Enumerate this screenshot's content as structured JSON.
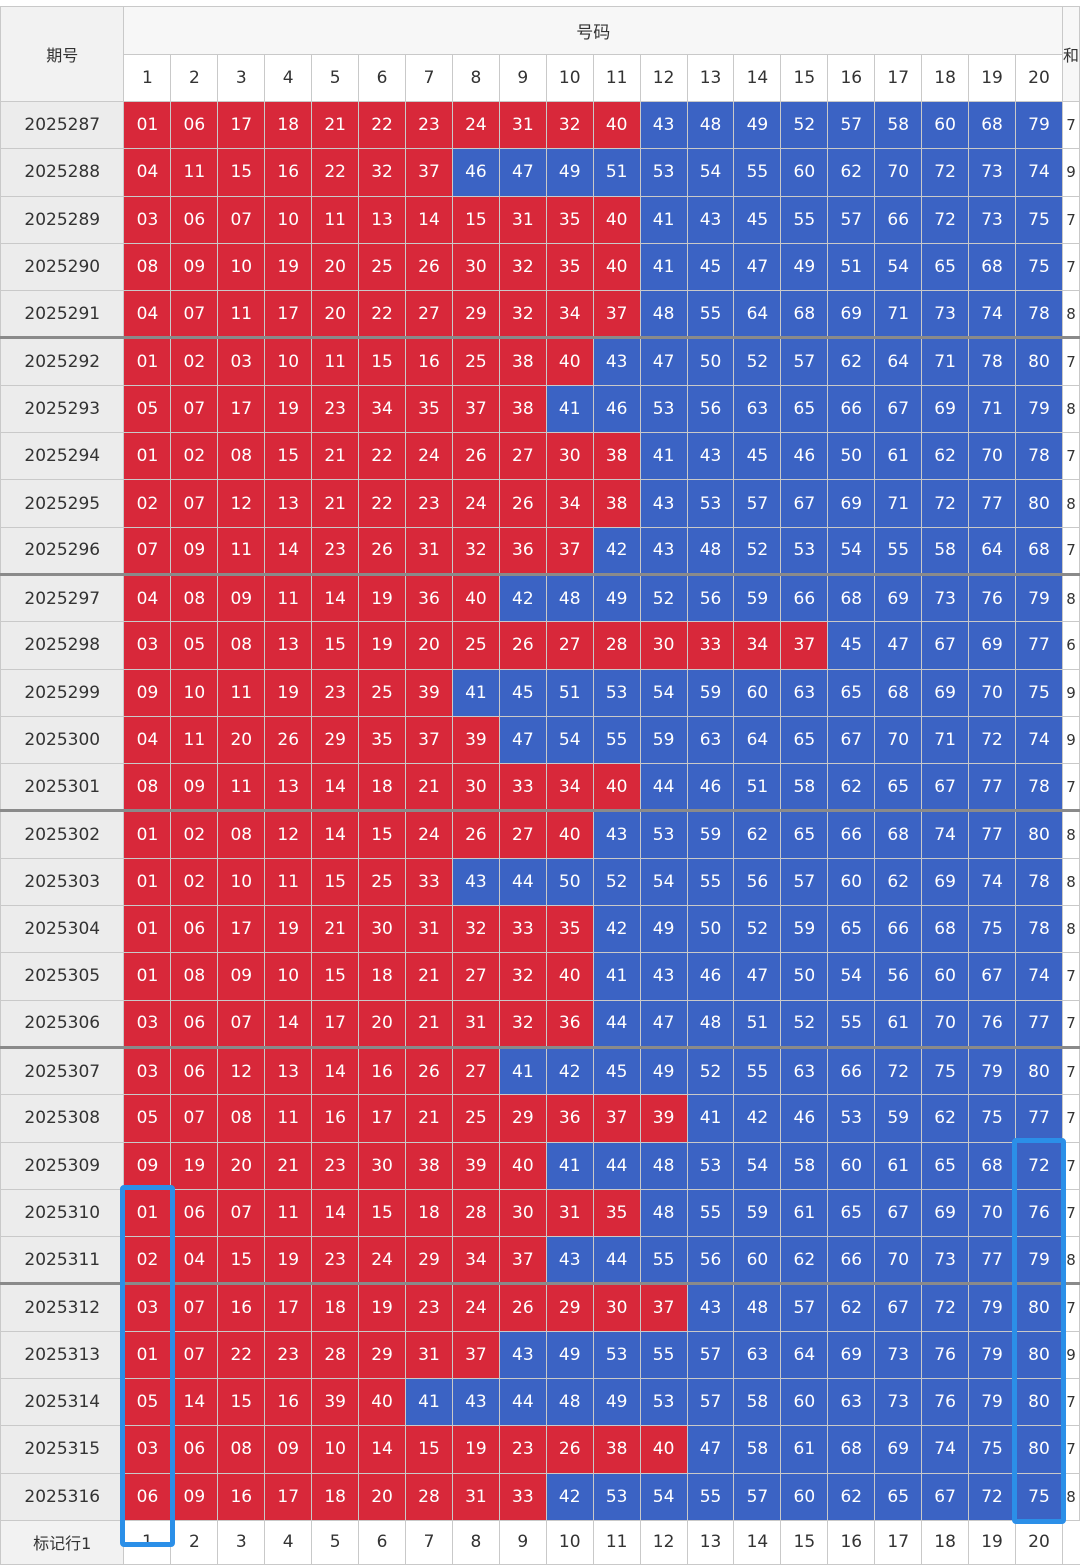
{
  "header": {
    "period_label": "期号",
    "group_label": "号码",
    "extra_label": "和",
    "columns": [
      "1",
      "2",
      "3",
      "4",
      "5",
      "6",
      "7",
      "8",
      "9",
      "10",
      "11",
      "12",
      "13",
      "14",
      "15",
      "16",
      "17",
      "18",
      "19",
      "20"
    ]
  },
  "rows": [
    {
      "period": "2025287",
      "numbers": [
        "01",
        "06",
        "17",
        "18",
        "21",
        "22",
        "23",
        "24",
        "31",
        "32",
        "40",
        "43",
        "48",
        "49",
        "52",
        "57",
        "58",
        "60",
        "68",
        "79"
      ],
      "extra": "7"
    },
    {
      "period": "2025288",
      "numbers": [
        "04",
        "11",
        "15",
        "16",
        "22",
        "32",
        "37",
        "46",
        "47",
        "49",
        "51",
        "53",
        "54",
        "55",
        "60",
        "62",
        "70",
        "72",
        "73",
        "74"
      ],
      "extra": "9"
    },
    {
      "period": "2025289",
      "numbers": [
        "03",
        "06",
        "07",
        "10",
        "11",
        "13",
        "14",
        "15",
        "31",
        "35",
        "40",
        "41",
        "43",
        "45",
        "55",
        "57",
        "66",
        "72",
        "73",
        "75"
      ],
      "extra": "7"
    },
    {
      "period": "2025290",
      "numbers": [
        "08",
        "09",
        "10",
        "19",
        "20",
        "25",
        "26",
        "30",
        "32",
        "35",
        "40",
        "41",
        "45",
        "47",
        "49",
        "51",
        "54",
        "65",
        "68",
        "75"
      ],
      "extra": "7"
    },
    {
      "period": "2025291",
      "numbers": [
        "04",
        "07",
        "11",
        "17",
        "20",
        "22",
        "27",
        "29",
        "32",
        "34",
        "37",
        "48",
        "55",
        "64",
        "68",
        "69",
        "71",
        "73",
        "74",
        "78"
      ],
      "extra": "8"
    },
    {
      "period": "2025292",
      "numbers": [
        "01",
        "02",
        "03",
        "10",
        "11",
        "15",
        "16",
        "25",
        "38",
        "40",
        "43",
        "47",
        "50",
        "52",
        "57",
        "62",
        "64",
        "71",
        "78",
        "80"
      ],
      "extra": "7"
    },
    {
      "period": "2025293",
      "numbers": [
        "05",
        "07",
        "17",
        "19",
        "23",
        "34",
        "35",
        "37",
        "38",
        "41",
        "46",
        "53",
        "56",
        "63",
        "65",
        "66",
        "67",
        "69",
        "71",
        "79"
      ],
      "extra": "8"
    },
    {
      "period": "2025294",
      "numbers": [
        "01",
        "02",
        "08",
        "15",
        "21",
        "22",
        "24",
        "26",
        "27",
        "30",
        "38",
        "41",
        "43",
        "45",
        "46",
        "50",
        "61",
        "62",
        "70",
        "78"
      ],
      "extra": "7"
    },
    {
      "period": "2025295",
      "numbers": [
        "02",
        "07",
        "12",
        "13",
        "21",
        "22",
        "23",
        "24",
        "26",
        "34",
        "38",
        "43",
        "53",
        "57",
        "67",
        "69",
        "71",
        "72",
        "77",
        "80"
      ],
      "extra": "8"
    },
    {
      "period": "2025296",
      "numbers": [
        "07",
        "09",
        "11",
        "14",
        "23",
        "26",
        "31",
        "32",
        "36",
        "37",
        "42",
        "43",
        "48",
        "52",
        "53",
        "54",
        "55",
        "58",
        "64",
        "68"
      ],
      "extra": "7"
    },
    {
      "period": "2025297",
      "numbers": [
        "04",
        "08",
        "09",
        "11",
        "14",
        "19",
        "36",
        "40",
        "42",
        "48",
        "49",
        "52",
        "56",
        "59",
        "66",
        "68",
        "69",
        "73",
        "76",
        "79"
      ],
      "extra": "8"
    },
    {
      "period": "2025298",
      "numbers": [
        "03",
        "05",
        "08",
        "13",
        "15",
        "19",
        "20",
        "25",
        "26",
        "27",
        "28",
        "30",
        "33",
        "34",
        "37",
        "45",
        "47",
        "67",
        "69",
        "77"
      ],
      "extra": "6"
    },
    {
      "period": "2025299",
      "numbers": [
        "09",
        "10",
        "11",
        "19",
        "23",
        "25",
        "39",
        "41",
        "45",
        "51",
        "53",
        "54",
        "59",
        "60",
        "63",
        "65",
        "68",
        "69",
        "70",
        "75"
      ],
      "extra": "9"
    },
    {
      "period": "2025300",
      "numbers": [
        "04",
        "11",
        "20",
        "26",
        "29",
        "35",
        "37",
        "39",
        "47",
        "54",
        "55",
        "59",
        "63",
        "64",
        "65",
        "67",
        "70",
        "71",
        "72",
        "74"
      ],
      "extra": "9"
    },
    {
      "period": "2025301",
      "numbers": [
        "08",
        "09",
        "11",
        "13",
        "14",
        "18",
        "21",
        "30",
        "33",
        "34",
        "40",
        "44",
        "46",
        "51",
        "58",
        "62",
        "65",
        "67",
        "77",
        "78"
      ],
      "extra": "7"
    },
    {
      "period": "2025302",
      "numbers": [
        "01",
        "02",
        "08",
        "12",
        "14",
        "15",
        "24",
        "26",
        "27",
        "40",
        "43",
        "53",
        "59",
        "62",
        "65",
        "66",
        "68",
        "74",
        "77",
        "80"
      ],
      "extra": "8"
    },
    {
      "period": "2025303",
      "numbers": [
        "01",
        "02",
        "10",
        "11",
        "15",
        "25",
        "33",
        "43",
        "44",
        "50",
        "52",
        "54",
        "55",
        "56",
        "57",
        "60",
        "62",
        "69",
        "74",
        "78"
      ],
      "extra": "8"
    },
    {
      "period": "2025304",
      "numbers": [
        "01",
        "06",
        "17",
        "19",
        "21",
        "30",
        "31",
        "32",
        "33",
        "35",
        "42",
        "49",
        "50",
        "52",
        "59",
        "65",
        "66",
        "68",
        "75",
        "78"
      ],
      "extra": "8"
    },
    {
      "period": "2025305",
      "numbers": [
        "01",
        "08",
        "09",
        "10",
        "15",
        "18",
        "21",
        "27",
        "32",
        "40",
        "41",
        "43",
        "46",
        "47",
        "50",
        "54",
        "56",
        "60",
        "67",
        "74"
      ],
      "extra": "7"
    },
    {
      "period": "2025306",
      "numbers": [
        "03",
        "06",
        "07",
        "14",
        "17",
        "20",
        "21",
        "31",
        "32",
        "36",
        "44",
        "47",
        "48",
        "51",
        "52",
        "55",
        "61",
        "70",
        "76",
        "77"
      ],
      "extra": "7"
    },
    {
      "period": "2025307",
      "numbers": [
        "03",
        "06",
        "12",
        "13",
        "14",
        "16",
        "26",
        "27",
        "41",
        "42",
        "45",
        "49",
        "52",
        "55",
        "63",
        "66",
        "72",
        "75",
        "79",
        "80"
      ],
      "extra": "7"
    },
    {
      "period": "2025308",
      "numbers": [
        "05",
        "07",
        "08",
        "11",
        "16",
        "17",
        "21",
        "25",
        "29",
        "36",
        "37",
        "39",
        "41",
        "42",
        "46",
        "53",
        "59",
        "62",
        "75",
        "77"
      ],
      "extra": "7"
    },
    {
      "period": "2025309",
      "numbers": [
        "09",
        "19",
        "20",
        "21",
        "23",
        "30",
        "38",
        "39",
        "40",
        "41",
        "44",
        "48",
        "53",
        "54",
        "58",
        "60",
        "61",
        "65",
        "68",
        "72"
      ],
      "extra": "7"
    },
    {
      "period": "2025310",
      "numbers": [
        "01",
        "06",
        "07",
        "11",
        "14",
        "15",
        "18",
        "28",
        "30",
        "31",
        "35",
        "48",
        "55",
        "59",
        "61",
        "65",
        "67",
        "69",
        "70",
        "76"
      ],
      "extra": "7"
    },
    {
      "period": "2025311",
      "numbers": [
        "02",
        "04",
        "15",
        "19",
        "23",
        "24",
        "29",
        "34",
        "37",
        "43",
        "44",
        "55",
        "56",
        "60",
        "62",
        "66",
        "70",
        "73",
        "77",
        "79"
      ],
      "extra": "8"
    },
    {
      "period": "2025312",
      "numbers": [
        "03",
        "07",
        "16",
        "17",
        "18",
        "19",
        "23",
        "24",
        "26",
        "29",
        "30",
        "37",
        "43",
        "48",
        "57",
        "62",
        "67",
        "72",
        "79",
        "80"
      ],
      "extra": "7"
    },
    {
      "period": "2025313",
      "numbers": [
        "01",
        "07",
        "22",
        "23",
        "28",
        "29",
        "31",
        "37",
        "43",
        "49",
        "53",
        "55",
        "57",
        "63",
        "64",
        "69",
        "73",
        "76",
        "79",
        "80"
      ],
      "extra": "9"
    },
    {
      "period": "2025314",
      "numbers": [
        "05",
        "14",
        "15",
        "16",
        "39",
        "40",
        "41",
        "43",
        "44",
        "48",
        "49",
        "53",
        "57",
        "58",
        "60",
        "63",
        "73",
        "76",
        "79",
        "80"
      ],
      "extra": "7"
    },
    {
      "period": "2025315",
      "numbers": [
        "03",
        "06",
        "08",
        "09",
        "10",
        "14",
        "15",
        "19",
        "23",
        "26",
        "38",
        "40",
        "47",
        "58",
        "61",
        "68",
        "69",
        "74",
        "75",
        "80"
      ],
      "extra": "7"
    },
    {
      "period": "2025316",
      "numbers": [
        "06",
        "09",
        "16",
        "17",
        "18",
        "20",
        "28",
        "31",
        "33",
        "42",
        "53",
        "54",
        "55",
        "57",
        "60",
        "62",
        "65",
        "67",
        "72",
        "75"
      ],
      "extra": "8"
    }
  ],
  "footer": {
    "label": "标记行1",
    "columns": [
      "1",
      "2",
      "3",
      "4",
      "5",
      "6",
      "7",
      "8",
      "9",
      "10",
      "11",
      "12",
      "13",
      "14",
      "15",
      "16",
      "17",
      "18",
      "19",
      "20"
    ]
  },
  "colors": {
    "low": "#d8283a",
    "high": "#3b63c4",
    "highlight": "#2b8fe8"
  },
  "color_rule": "red when number <= 40, blue when number > 40"
}
